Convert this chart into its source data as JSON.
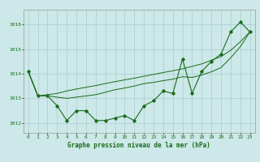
{
  "title": "Graphe pression niveau de la mer (hPa)",
  "background_color": "#cce8e8",
  "grid_color": "#aacccc",
  "line_color": "#1a6b1a",
  "xlim": [
    -0.5,
    23.5
  ],
  "ylim": [
    1011.6,
    1016.6
  ],
  "yticks": [
    1012,
    1013,
    1014,
    1015,
    1016
  ],
  "xticks": [
    0,
    1,
    2,
    3,
    4,
    5,
    6,
    7,
    8,
    9,
    10,
    11,
    12,
    13,
    14,
    15,
    16,
    17,
    18,
    19,
    20,
    21,
    22,
    23
  ],
  "series": {
    "main": [
      1014.1,
      1013.1,
      1013.1,
      1012.7,
      1012.1,
      1012.5,
      1012.5,
      1012.1,
      1012.1,
      1012.2,
      1012.3,
      1012.1,
      1012.7,
      1012.9,
      1013.3,
      1013.2,
      1014.6,
      1013.2,
      1014.1,
      1014.5,
      1014.8,
      1015.7,
      1016.1,
      1015.7
    ],
    "smooth1": [
      1014.1,
      1013.1,
      1013.15,
      1013.2,
      1013.3,
      1013.38,
      1013.45,
      1013.52,
      1013.6,
      1013.68,
      1013.75,
      1013.82,
      1013.9,
      1013.97,
      1014.05,
      1014.12,
      1014.2,
      1014.3,
      1014.4,
      1014.55,
      1014.7,
      1014.95,
      1015.3,
      1015.7
    ],
    "smooth2": [
      1014.1,
      1013.1,
      1013.1,
      1013.05,
      1013.0,
      1013.05,
      1013.1,
      1013.15,
      1013.25,
      1013.35,
      1013.42,
      1013.5,
      1013.6,
      1013.65,
      1013.72,
      1013.78,
      1013.88,
      1013.85,
      1013.95,
      1014.08,
      1014.25,
      1014.65,
      1015.1,
      1015.7
    ]
  }
}
